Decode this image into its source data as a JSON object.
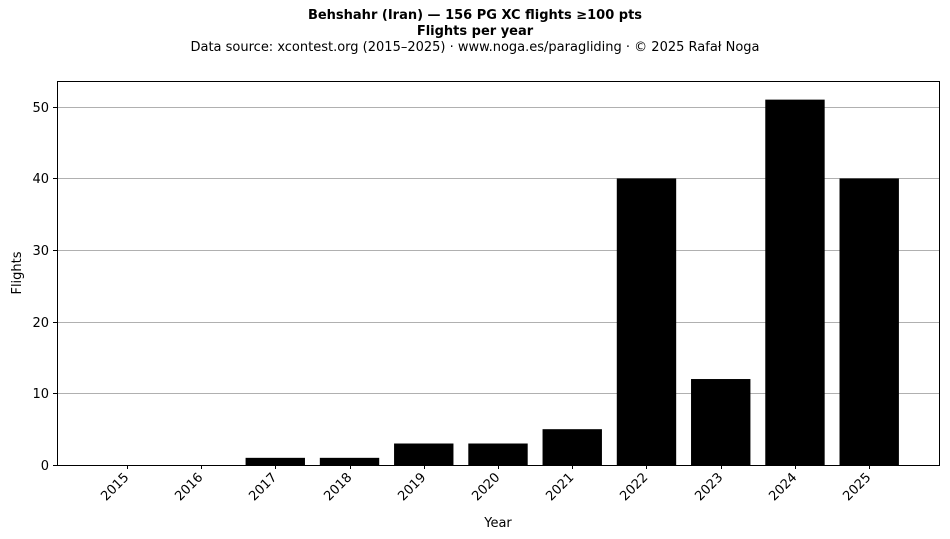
{
  "chart_data": {
    "type": "bar",
    "title_lines": [
      "Behshahr (Iran)  —  156 PG XC flights ≥100 pts",
      "Flights per year"
    ],
    "subtitle": "Data source: xcontest.org (2015–2025)  ·  www.noga.es/paragliding  ·  © 2025 Rafał Noga",
    "xlabel": "Year",
    "ylabel": "Flights",
    "categories": [
      "2015",
      "2016",
      "2017",
      "2018",
      "2019",
      "2020",
      "2021",
      "2022",
      "2023",
      "2024",
      "2025"
    ],
    "values": [
      0,
      0,
      1,
      1,
      3,
      3,
      5,
      40,
      12,
      51,
      40
    ],
    "ylim": [
      0,
      53.6
    ],
    "yticks": [
      "0",
      "10",
      "20",
      "30",
      "40",
      "50"
    ],
    "grid": "y-major",
    "bar_color": "#000000",
    "grid_color": "#b0b0b0"
  }
}
